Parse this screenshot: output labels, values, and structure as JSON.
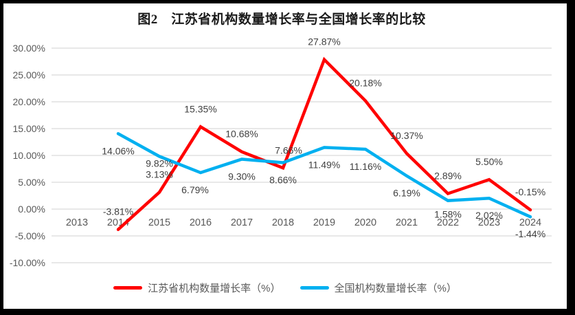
{
  "chart_data": {
    "type": "line",
    "title": "图2　江苏省机构数量增长率与全国增长率的比较",
    "categories": [
      "2013",
      "2014",
      "2015",
      "2016",
      "2017",
      "2018",
      "2019",
      "2020",
      "2021",
      "2022",
      "2023",
      "2024"
    ],
    "y_tick_labels": [
      "30.00%",
      "25.00%",
      "20.00%",
      "15.00%",
      "10.00%",
      "5.00%",
      "0.00%",
      "-5.00%",
      "-10.00%"
    ],
    "y_tick_values": [
      30,
      25,
      20,
      15,
      10,
      5,
      0,
      -5,
      -10
    ],
    "ylim": [
      -10,
      30
    ],
    "grid": true,
    "legend_position": "bottom",
    "series": [
      {
        "name": "江苏省机构数量增长率（%）",
        "color": "#FF0000",
        "values": [
          null,
          -3.81,
          3.13,
          15.35,
          10.68,
          7.66,
          27.87,
          20.18,
          10.37,
          2.89,
          5.5,
          -0.15
        ],
        "labels": [
          "",
          "-3.81%",
          "3.13%",
          "15.35%",
          "10.68%",
          "7.66%",
          "27.87%",
          "20.18%",
          "10.37%",
          "2.89%",
          "5.50%",
          "-0.15%"
        ]
      },
      {
        "name": "全国机构数量增长率（%）",
        "color": "#00B0F0",
        "values": [
          null,
          14.06,
          9.82,
          6.79,
          9.3,
          8.66,
          11.49,
          11.16,
          6.19,
          1.58,
          2.02,
          -1.44
        ],
        "labels": [
          "",
          "14.06%",
          "9.82%",
          "6.79%",
          "9.30%",
          "8.66%",
          "11.49%",
          "11.16%",
          "6.19%",
          "1.58%",
          "2.02%",
          "-1.44%"
        ]
      }
    ],
    "colors": {
      "frame": "#000000",
      "background": "#FFFFFF",
      "gridline": "#D9D9D9",
      "tick_text": "#595959",
      "label_text": "#404040",
      "title_text": "#1A1A1A"
    }
  }
}
